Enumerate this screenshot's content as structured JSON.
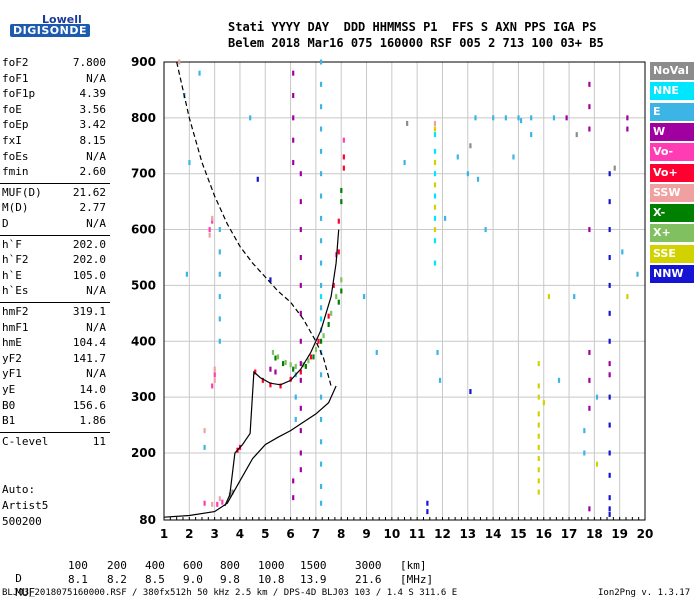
{
  "logo": {
    "line1": "Lowell",
    "line2": "DIGISONDE"
  },
  "header": {
    "line1": "Stati YYYY DAY  DDD HHMMSS P1  FFS S AXN PPS IGA PS",
    "line2": "Belem 2018 Mar16 075 160000 RSF 005 2 713 100 03+ B5"
  },
  "params": [
    {
      "name": "foF2",
      "value": "7.800"
    },
    {
      "name": "foF1",
      "value": "N/A"
    },
    {
      "name": "foF1p",
      "value": "4.39"
    },
    {
      "name": "foE",
      "value": "3.56"
    },
    {
      "name": "foEp",
      "value": "3.42"
    },
    {
      "name": "fxI",
      "value": "8.15"
    },
    {
      "name": "foEs",
      "value": "N/A"
    },
    {
      "name": "fmin",
      "value": "2.60"
    },
    {
      "name": "MUF(D)",
      "value": "21.62"
    },
    {
      "name": "M(D)",
      "value": "2.77"
    },
    {
      "name": "D",
      "value": "N/A"
    },
    {
      "name": "h`F",
      "value": "202.0"
    },
    {
      "name": "h`F2",
      "value": "202.0"
    },
    {
      "name": "h`E",
      "value": "105.0"
    },
    {
      "name": "h`Es",
      "value": "N/A"
    },
    {
      "name": "hmF2",
      "value": "319.1"
    },
    {
      "name": "hmF1",
      "value": "N/A"
    },
    {
      "name": "hmE",
      "value": "104.4"
    },
    {
      "name": "yF2",
      "value": "141.7"
    },
    {
      "name": "yF1",
      "value": "N/A"
    },
    {
      "name": "yE",
      "value": "14.0"
    },
    {
      "name": "B0",
      "value": "156.6"
    },
    {
      "name": "B1",
      "value": "1.86"
    },
    {
      "name": "C-level",
      "value": "11"
    }
  ],
  "autoscaling": {
    "label": "Auto:",
    "software": "Artist5",
    "version": "500200"
  },
  "legend": [
    {
      "label": "NoVal",
      "bg": "#8c8c8c",
      "fg": "#ffffff"
    },
    {
      "label": "NNE",
      "bg": "#00e6ff",
      "fg": "#ffffff"
    },
    {
      "label": "E",
      "bg": "#3cb4e6",
      "fg": "#ffffff"
    },
    {
      "label": "W",
      "bg": "#a000a0",
      "fg": "#ffffff"
    },
    {
      "label": "Vo-",
      "bg": "#ff3cb4",
      "fg": "#ffffff"
    },
    {
      "label": "Vo+",
      "bg": "#ff0030",
      "fg": "#ffffff"
    },
    {
      "label": "SSW",
      "bg": "#f0a0a0",
      "fg": "#ffffff"
    },
    {
      "label": "X-",
      "bg": "#008000",
      "fg": "#ffffff"
    },
    {
      "label": "X+",
      "bg": "#80c060",
      "fg": "#ffffff"
    },
    {
      "label": "SSE",
      "bg": "#d2d200",
      "fg": "#ffffff"
    },
    {
      "label": "NNW",
      "bg": "#1414d2",
      "fg": "#ffffff"
    }
  ],
  "muf_table": {
    "d_label": "D",
    "d_values": [
      "100",
      "200",
      "400",
      "600",
      "800",
      "1000",
      "1500",
      "3000"
    ],
    "d_unit": "[km]",
    "m_label": "MUF",
    "m_values": [
      "8.1",
      "8.2",
      "8.5",
      "9.0",
      "9.8",
      "10.8",
      "13.9",
      "21.6"
    ],
    "m_unit": "[MHz]"
  },
  "footer": {
    "left": "BLJ03_2018075160000.RSF / 380fx512h 50 kHz 2.5 km / DPS-4D BLJ03 103 / 1.4 S 311.6 E",
    "right": "Ion2Png v. 1.3.17"
  },
  "chart_data": {
    "type": "scatter",
    "title": "",
    "xlabel": "",
    "ylabel": "",
    "xlim": [
      1,
      20
    ],
    "ylim": [
      80,
      900
    ],
    "x_ticks": [
      1,
      2,
      3,
      4,
      5,
      6,
      7,
      8,
      9,
      10,
      11,
      12,
      13,
      14,
      15,
      16,
      17,
      18,
      19,
      20
    ],
    "y_ticks": [
      80,
      200,
      300,
      400,
      500,
      600,
      700,
      800,
      900
    ],
    "grid": true,
    "profile_curves": [
      {
        "name": "",
        "style": "dashed",
        "color": "#000000",
        "points": [
          [
            1.5,
            900
          ],
          [
            2,
            800
          ],
          [
            2.5,
            720
          ],
          [
            3,
            660
          ],
          [
            3.5,
            610
          ],
          [
            4,
            570
          ],
          [
            4.5,
            540
          ],
          [
            5,
            515
          ],
          [
            5.5,
            490
          ],
          [
            6,
            470
          ],
          [
            6.5,
            440
          ],
          [
            7,
            400
          ],
          [
            7.3,
            370
          ],
          [
            7.6,
            320
          ]
        ]
      },
      {
        "name": "",
        "style": "solid",
        "color": "#000000",
        "points": [
          [
            1,
            85
          ],
          [
            2,
            88
          ],
          [
            3,
            95
          ],
          [
            3.5,
            110
          ],
          [
            4,
            150
          ],
          [
            4.5,
            190
          ],
          [
            5,
            215
          ],
          [
            5.5,
            228
          ],
          [
            6,
            240
          ],
          [
            6.5,
            255
          ],
          [
            7,
            270
          ],
          [
            7.5,
            290
          ],
          [
            7.8,
            320
          ]
        ]
      },
      {
        "name": "",
        "style": "solid",
        "color": "#000000",
        "points": [
          [
            3.4,
            105
          ],
          [
            3.6,
            125
          ],
          [
            3.8,
            200
          ],
          [
            4.1,
            215
          ],
          [
            4.4,
            235
          ],
          [
            4.55,
            345
          ],
          [
            4.8,
            335
          ],
          [
            5.2,
            325
          ],
          [
            5.6,
            322
          ],
          [
            6,
            330
          ],
          [
            6.4,
            350
          ],
          [
            6.8,
            380
          ],
          [
            7.2,
            420
          ],
          [
            7.6,
            480
          ],
          [
            7.8,
            540
          ],
          [
            7.9,
            600
          ]
        ]
      }
    ],
    "traces": [
      {
        "series": "X+",
        "color": "#80c060",
        "points": [
          [
            5.3,
            380
          ],
          [
            5.5,
            372
          ],
          [
            5.8,
            362
          ],
          [
            6.0,
            358
          ],
          [
            6.2,
            355
          ],
          [
            6.5,
            358
          ],
          [
            6.7,
            365
          ],
          [
            7.0,
            385
          ],
          [
            7.3,
            410
          ],
          [
            7.6,
            450
          ],
          [
            7.8,
            480
          ],
          [
            8.0,
            510
          ]
        ]
      },
      {
        "series": "X-",
        "color": "#008000",
        "points": [
          [
            5.4,
            370
          ],
          [
            5.7,
            360
          ],
          [
            6.1,
            350
          ],
          [
            6.6,
            355
          ],
          [
            6.9,
            372
          ],
          [
            7.2,
            400
          ],
          [
            7.5,
            430
          ],
          [
            7.9,
            470
          ],
          [
            8.0,
            490
          ],
          [
            8.0,
            650
          ],
          [
            8.0,
            670
          ]
        ]
      },
      {
        "series": "Vo+",
        "color": "#ff0030",
        "points": [
          [
            3.9,
            205
          ],
          [
            4.0,
            210
          ],
          [
            4.6,
            345
          ],
          [
            4.9,
            330
          ],
          [
            5.2,
            322
          ],
          [
            5.6,
            320
          ],
          [
            6.0,
            332
          ],
          [
            6.4,
            345
          ],
          [
            6.8,
            372
          ],
          [
            7.1,
            400
          ],
          [
            7.5,
            445
          ],
          [
            7.7,
            500
          ],
          [
            7.9,
            560
          ],
          [
            7.9,
            615
          ],
          [
            8.1,
            710
          ],
          [
            8.1,
            730
          ]
        ]
      },
      {
        "series": "Vo-",
        "color": "#ff3cb4",
        "points": [
          [
            2.8,
            600
          ],
          [
            2.9,
            615
          ],
          [
            3.0,
            340
          ],
          [
            2.9,
            320
          ],
          [
            2.6,
            110
          ],
          [
            3.1,
            108
          ],
          [
            3.3,
            112
          ],
          [
            8.1,
            760
          ],
          [
            7.8,
            555
          ]
        ]
      },
      {
        "series": "W",
        "color": "#a000a0",
        "points": [
          [
            6.1,
            880
          ],
          [
            6.1,
            840
          ],
          [
            6.1,
            800
          ],
          [
            6.1,
            760
          ],
          [
            6.1,
            720
          ],
          [
            6.4,
            700
          ],
          [
            6.4,
            650
          ],
          [
            6.4,
            600
          ],
          [
            6.4,
            550
          ],
          [
            6.4,
            500
          ],
          [
            6.4,
            450
          ],
          [
            6.4,
            400
          ],
          [
            6.4,
            360
          ],
          [
            6.4,
            330
          ],
          [
            6.4,
            280
          ],
          [
            6.4,
            240
          ],
          [
            6.4,
            200
          ],
          [
            6.4,
            170
          ],
          [
            6.1,
            150
          ],
          [
            6.1,
            120
          ],
          [
            17.8,
            860
          ],
          [
            17.8,
            820
          ],
          [
            17.8,
            780
          ],
          [
            17.8,
            600
          ],
          [
            17.8,
            380
          ],
          [
            17.8,
            330
          ],
          [
            17.8,
            280
          ],
          [
            17.8,
            100
          ],
          [
            19.3,
            800
          ],
          [
            19.3,
            780
          ],
          [
            18.6,
            360
          ],
          [
            18.6,
            340
          ],
          [
            16.9,
            800
          ],
          [
            5.2,
            350
          ],
          [
            5.4,
            345
          ]
        ]
      },
      {
        "series": "NNW",
        "color": "#1414d2",
        "points": [
          [
            18.6,
            700
          ],
          [
            18.6,
            650
          ],
          [
            18.6,
            600
          ],
          [
            18.6,
            550
          ],
          [
            18.6,
            500
          ],
          [
            18.6,
            450
          ],
          [
            18.6,
            400
          ],
          [
            18.6,
            300
          ],
          [
            18.6,
            250
          ],
          [
            18.6,
            200
          ],
          [
            18.6,
            160
          ],
          [
            18.6,
            120
          ],
          [
            18.6,
            100
          ],
          [
            18.6,
            90
          ],
          [
            11.4,
            110
          ],
          [
            11.4,
            95
          ],
          [
            4.7,
            690
          ],
          [
            13.1,
            310
          ],
          [
            5.2,
            510
          ]
        ]
      },
      {
        "series": "E",
        "color": "#3cb4e6",
        "points": [
          [
            7.2,
            900
          ],
          [
            7.2,
            860
          ],
          [
            7.2,
            820
          ],
          [
            7.2,
            780
          ],
          [
            7.2,
            740
          ],
          [
            7.2,
            700
          ],
          [
            7.2,
            660
          ],
          [
            7.2,
            620
          ],
          [
            7.2,
            580
          ],
          [
            7.2,
            540
          ],
          [
            7.2,
            500
          ],
          [
            7.2,
            460
          ],
          [
            7.2,
            420
          ],
          [
            7.2,
            380
          ],
          [
            7.2,
            340
          ],
          [
            7.2,
            300
          ],
          [
            7.2,
            260
          ],
          [
            7.2,
            220
          ],
          [
            7.2,
            180
          ],
          [
            7.2,
            140
          ],
          [
            7.2,
            110
          ],
          [
            3.2,
            600
          ],
          [
            3.2,
            560
          ],
          [
            3.2,
            520
          ],
          [
            3.2,
            480
          ],
          [
            3.2,
            440
          ],
          [
            3.2,
            400
          ],
          [
            6.2,
            340
          ],
          [
            6.2,
            300
          ],
          [
            6.2,
            260
          ],
          [
            14.5,
            800
          ],
          [
            15.0,
            800
          ],
          [
            15.5,
            800
          ],
          [
            15.1,
            795
          ],
          [
            13.3,
            800
          ],
          [
            14.0,
            800
          ],
          [
            16.4,
            800
          ],
          [
            12.6,
            730
          ],
          [
            13.0,
            700
          ],
          [
            13.4,
            690
          ],
          [
            14.8,
            730
          ],
          [
            15.5,
            770
          ],
          [
            10.5,
            720
          ],
          [
            17.2,
            480
          ],
          [
            19.1,
            560
          ],
          [
            19.7,
            520
          ],
          [
            18.1,
            300
          ],
          [
            17.6,
            200
          ],
          [
            17.6,
            240
          ],
          [
            16.6,
            330
          ],
          [
            12.1,
            620
          ],
          [
            13.7,
            600
          ],
          [
            1.8,
            840
          ],
          [
            2.0,
            720
          ],
          [
            1.9,
            520
          ],
          [
            2.6,
            210
          ],
          [
            2.4,
            880
          ],
          [
            4.4,
            800
          ],
          [
            9.4,
            380
          ],
          [
            8.9,
            480
          ],
          [
            11.8,
            380
          ],
          [
            11.9,
            330
          ]
        ]
      },
      {
        "series": "NNE",
        "color": "#00e6ff",
        "points": [
          [
            11.7,
            770
          ],
          [
            11.7,
            740
          ],
          [
            11.7,
            700
          ],
          [
            11.7,
            660
          ],
          [
            11.7,
            620
          ],
          [
            11.7,
            580
          ],
          [
            11.7,
            540
          ],
          [
            7.2,
            480
          ],
          [
            7.2,
            440
          ]
        ]
      },
      {
        "series": "SSE",
        "color": "#d2d200",
        "points": [
          [
            11.7,
            780
          ],
          [
            11.7,
            720
          ],
          [
            11.7,
            680
          ],
          [
            11.7,
            640
          ],
          [
            11.7,
            600
          ],
          [
            15.8,
            360
          ],
          [
            15.8,
            320
          ],
          [
            15.8,
            300
          ],
          [
            15.8,
            270
          ],
          [
            15.8,
            250
          ],
          [
            15.8,
            230
          ],
          [
            15.8,
            210
          ],
          [
            15.8,
            190
          ],
          [
            15.8,
            170
          ],
          [
            15.8,
            150
          ],
          [
            15.8,
            130
          ],
          [
            16.0,
            290
          ],
          [
            18.1,
            180
          ],
          [
            19.3,
            480
          ],
          [
            16.2,
            480
          ]
        ]
      },
      {
        "series": "SSW",
        "color": "#f0a0a0",
        "points": [
          [
            2.9,
            620
          ],
          [
            2.8,
            590
          ],
          [
            3.0,
            350
          ],
          [
            3.0,
            330
          ],
          [
            2.6,
            240
          ],
          [
            1.6,
            900
          ],
          [
            11.7,
            790
          ],
          [
            2.9,
            108
          ],
          [
            3.2,
            118
          ]
        ]
      },
      {
        "series": "NoVal",
        "color": "#8c8c8c",
        "points": [
          [
            3.6,
            125
          ],
          [
            3.7,
            130
          ],
          [
            10.6,
            790
          ],
          [
            13.1,
            750
          ],
          [
            17.3,
            770
          ],
          [
            18.8,
            710
          ]
        ]
      }
    ]
  }
}
